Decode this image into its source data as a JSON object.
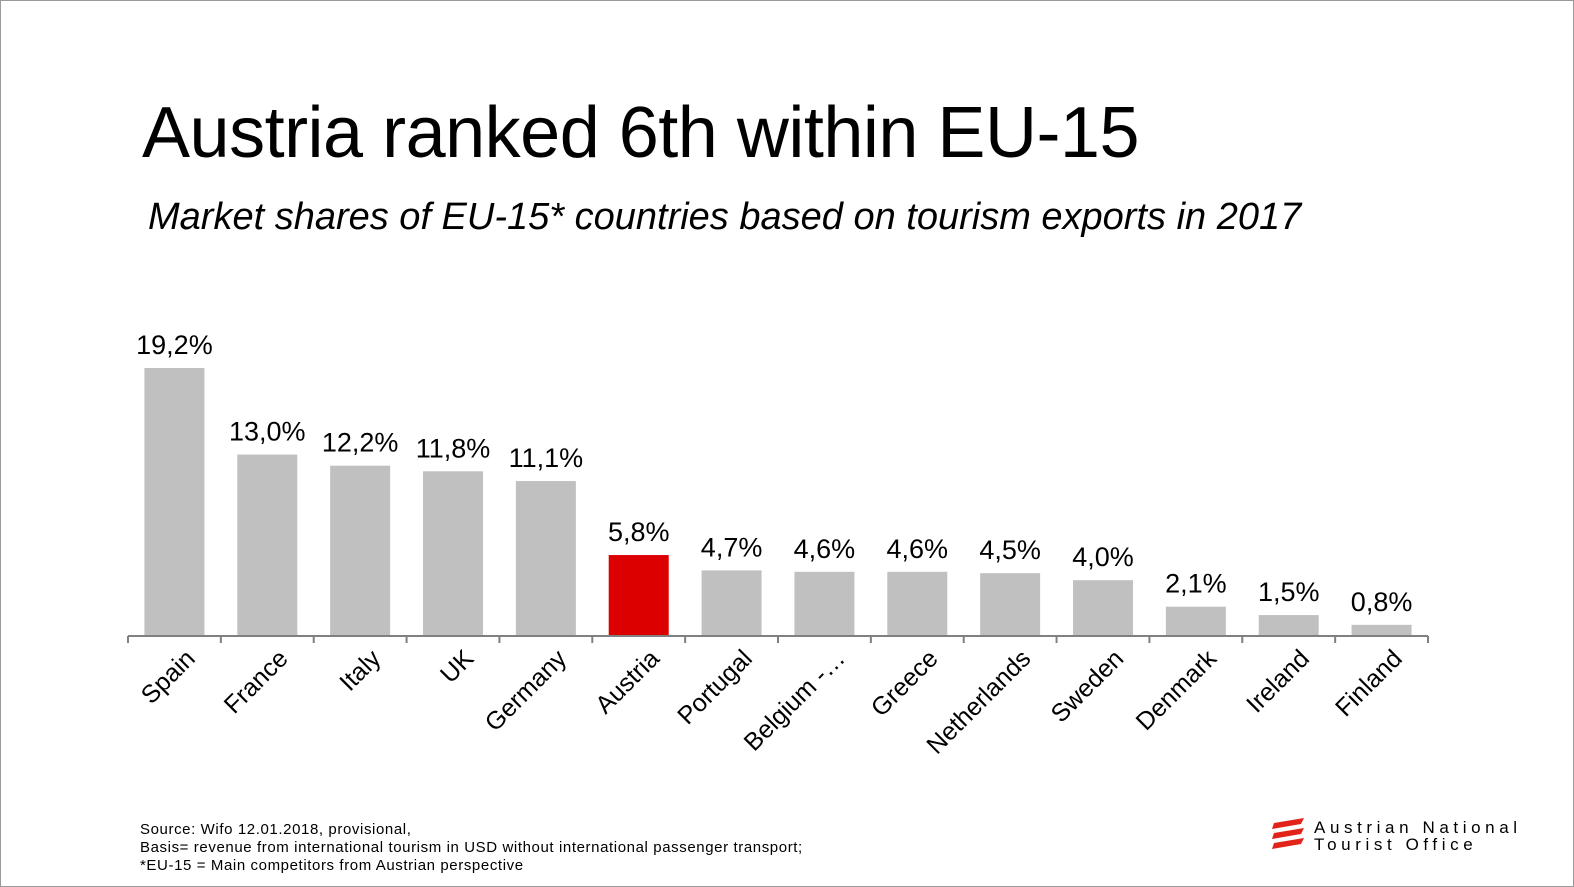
{
  "slide": {
    "title": "Austria ranked 6th within EU-15",
    "subtitle": "Market shares of EU-15* countries based on tourism exports in 2017"
  },
  "footnote": {
    "line1": "Source:  Wifo  12.01.2018, provisional,",
    "line2": "Basis= revenue from international tourism in USD without international passenger transport;",
    "line3": "*EU-15 = Main competitors from Austrian perspective"
  },
  "logo": {
    "line1": "Austrian National",
    "line2": "Tourist Office",
    "icon": "austria-flag-stripes-icon"
  },
  "colors": {
    "bar": "#c0c0c0",
    "highlight": "#dd0000",
    "axis": "#808080",
    "logo_red": "#e2231a"
  },
  "chart_data": {
    "type": "bar",
    "categories": [
      "Spain",
      "France",
      "Italy",
      "UK",
      "Germany",
      "Austria",
      "Portugal",
      "Belgium -…",
      "Greece",
      "Netherlands",
      "Sweden",
      "Denmark",
      "Ireland",
      "Finland"
    ],
    "values": [
      19.2,
      13.0,
      12.2,
      11.8,
      11.1,
      5.8,
      4.7,
      4.6,
      4.6,
      4.5,
      4.0,
      2.1,
      1.5,
      0.8
    ],
    "labels": [
      "19,2%",
      "13,0%",
      "12,2%",
      "11,8%",
      "11,1%",
      "5,8%",
      "4,7%",
      "4,6%",
      "4,6%",
      "4,5%",
      "4,0%",
      "2,1%",
      "1,5%",
      "0,8%"
    ],
    "highlight": "Austria",
    "ylim": [
      0,
      19.2
    ],
    "grid": false,
    "legend": "none"
  }
}
